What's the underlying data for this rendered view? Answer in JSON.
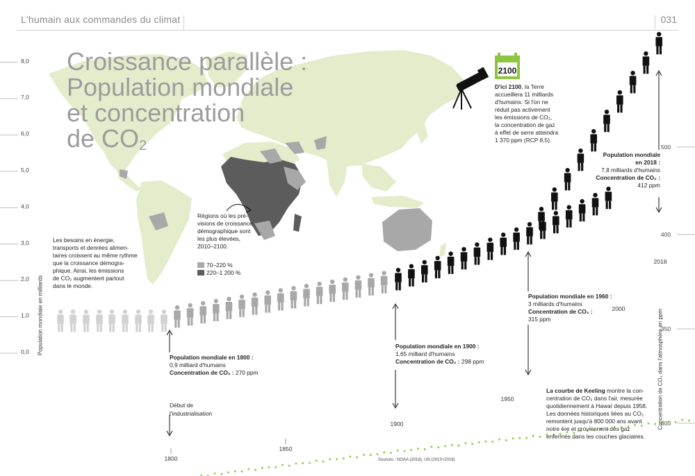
{
  "header": {
    "running_title": "L'humain aux commandes du climat",
    "page_number": "031"
  },
  "title": {
    "line1": "Croissance parallèle :",
    "line2": "Population mondiale",
    "line3": "et concentration",
    "line4_prefix": "de CO",
    "line4_sub": "2"
  },
  "intro": {
    "lines": [
      "Les besoins en énergie,",
      "transports et denrées alimen-",
      "taires croissent au même rythme",
      "que la croissance démogra-",
      "phique. Ainsi, les émissions",
      "de CO₂ augmentent partout",
      "dans le monde."
    ]
  },
  "map_note": {
    "lines": [
      "Régions où les pré-",
      "visions de croissance",
      "démographique sont",
      "les plus élevées,",
      "2010–2100."
    ]
  },
  "map_legend": [
    {
      "label": "70–220 %",
      "color": "#a8a8a8"
    },
    {
      "label": "220–1 200 %",
      "color": "#5c5c5c"
    }
  ],
  "calendar": {
    "year": "2100"
  },
  "forecast_2100": {
    "lines": [
      "**D'ici 2100**, la Terre",
      "accueillera 11 milliards",
      "d'humains. Si l'on ne",
      "réduit pas activement",
      "les émissions de CO₂,",
      "la concentration de gaz",
      "à effet de serre atteindra",
      "1 370 ppm (RCP 8.5)."
    ]
  },
  "annotations": [
    {
      "id": "1800",
      "l1": "Population mondiale en 1800 :",
      "l2": "0,9 milliard d'humains",
      "l3k": "Concentration de CO₂ :",
      "l3v": " 270 ppm"
    },
    {
      "id": "1900",
      "l1": "Population mondiale en 1900 :",
      "l2": "1,65 milliard d'humains",
      "l3k": "Concentration de CO₂ :",
      "l3v": " 298 ppm"
    },
    {
      "id": "1960",
      "l1": "Population mondiale en 1960 :",
      "l2": "3 milliards d'humains",
      "l3k": "Concentration de CO₂ :",
      "l3v": "",
      "l4": "315 ppm"
    },
    {
      "id": "2018",
      "l1": "Population mondiale",
      "l1b": "en 2018 :",
      "l2": "7,8 milliards d'humains",
      "l3k": "Concentration de CO₂ :",
      "l4": "412 ppm"
    }
  ],
  "industrialisation": {
    "l1": "Début de",
    "l2": "l'industrialisation"
  },
  "keeling": {
    "lines": [
      "**La courbe de Keeling** montre la con-",
      "centration de CO₂ dans l'air, mesurée",
      "quotidiennement à Hawaï depuis 1958.",
      "Les données historiques liées au CO₂",
      "remontent jusqu'à 800 000 ans avant",
      "notre ère et proviennent des gaz",
      "enfermés dans les couches glaciaires."
    ]
  },
  "source": "Sources : NOAA (2018), UN (2013+2018)",
  "colors": {
    "map": "#e5eccc",
    "curve": "#8cc63f",
    "people_light": "#d2d2d2",
    "people_dark": "#111111",
    "calendar": "#8cc63f"
  },
  "icons": [
    "telescope-icon",
    "calendar-icon",
    "person-icon"
  ],
  "chart_data": {
    "type": "line",
    "x_axis": {
      "ticks": [
        1800,
        1850,
        1900,
        1950,
        2000,
        2018
      ]
    },
    "y_left": {
      "label": "Population mondiale en milliards",
      "ticks": [
        "0,0",
        "1,0",
        "2,0",
        "3,0",
        "4,0",
        "5,0",
        "6,0",
        "7,0",
        "8,0"
      ],
      "range": [
        0,
        8
      ]
    },
    "y_right": {
      "label": "Concentration de CO₂ dans l'atmosphère en ppm",
      "ticks": [
        300,
        350,
        400,
        500
      ],
      "range": [
        270,
        500
      ]
    },
    "series": [
      {
        "name": "Concentration de CO₂",
        "x": [
          1750,
          1800,
          1850,
          1900,
          1920,
          1940,
          1958,
          1970,
          1980,
          1990,
          2000,
          2010,
          2018
        ],
        "values": [
          270,
          270,
          285,
          298,
          303,
          310,
          315,
          325,
          338,
          354,
          369,
          390,
          412
        ]
      },
      {
        "name": "Population mondiale",
        "x": [
          1800,
          1900,
          1960,
          2018
        ],
        "values": [
          0.9,
          1.65,
          3.0,
          7.8
        ]
      }
    ]
  }
}
